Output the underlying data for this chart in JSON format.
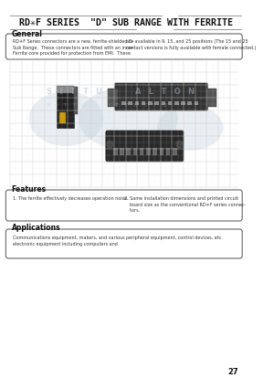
{
  "background_color": "#f5f5f0",
  "page_number": "27",
  "title": "RD✳F SERIES  \"D\" SUB RANGE WITH FERRITE",
  "section_general": "General",
  "general_text_left": "RD✳F Series connectors are a new, ferrite-shielded D-\nSub Range.  These connectors are fitted with an inner\nFerrite core provided for protection from EMI.  These",
  "general_text_right": "are available in 9, 15, and 25 positions (The 15 and 25\ncontact versions is fully available with female connected.)",
  "section_features": "Features",
  "feature1": "1. The ferrite effectively decreases operation noise.",
  "feature2": "2. Same installation dimensions and printed circuit\n    board size as the conventional RD✳F series connec-\n    tors.",
  "section_applications": "Applications",
  "app_text_left": "Communications equipment, makers, and various\nelectronic equipment including computers and",
  "app_text_right": "peripheral equipment, control devices, etc."
}
